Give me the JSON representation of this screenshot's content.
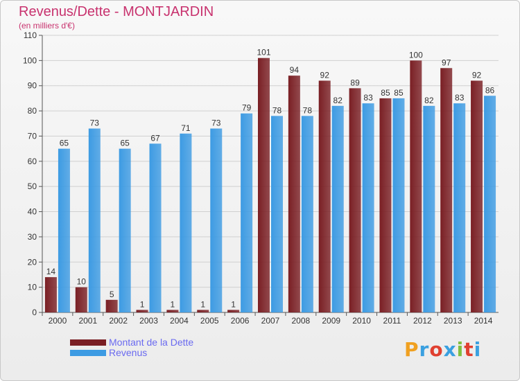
{
  "chart_data": {
    "type": "bar",
    "title": "Revenus/Dette - MONTJARDIN",
    "subtitle": "(en milliers d'€)",
    "categories": [
      "2000",
      "2001",
      "2002",
      "2003",
      "2004",
      "2005",
      "2006",
      "2007",
      "2008",
      "2009",
      "2010",
      "2011",
      "2012",
      "2013",
      "2014"
    ],
    "series": [
      {
        "name": "Montant de la Dette",
        "color": "#7a1f24",
        "values": [
          14,
          10,
          5,
          1,
          1,
          1,
          1,
          101,
          94,
          92,
          89,
          85,
          100,
          97,
          92
        ]
      },
      {
        "name": "Revenus",
        "color": "#3d9be3",
        "values": [
          65,
          73,
          65,
          67,
          71,
          73,
          79,
          78,
          78,
          82,
          83,
          85,
          82,
          83,
          86
        ]
      }
    ],
    "ylim": [
      0,
      110
    ],
    "yticks": [
      0,
      10,
      20,
      30,
      40,
      50,
      60,
      70,
      80,
      90,
      100,
      110
    ],
    "grid": true,
    "legend_position": "bottom-left"
  },
  "logo": {
    "letters": [
      "P",
      "r",
      "o",
      "x",
      "i",
      "t",
      "i"
    ],
    "colors": [
      "#f0a020",
      "#3aa0e0",
      "#e04030",
      "#3aa0e0",
      "#80c040",
      "#e04030",
      "#3aa0e0"
    ]
  }
}
